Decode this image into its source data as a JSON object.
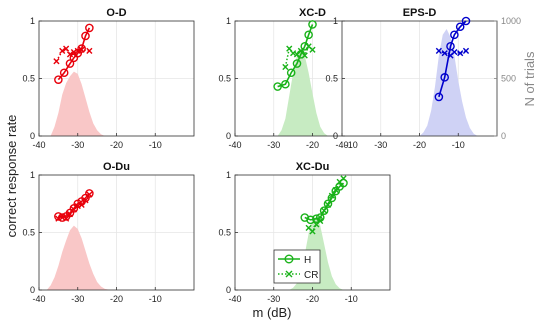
{
  "figure": {
    "ylabel": "correct response rate",
    "xlabel": "m (dB)",
    "right_ylabel": "N of trials"
  },
  "legend": {
    "placement": "bottom-right of XC-Du panel",
    "entries": [
      {
        "label": "H",
        "marker": "circle",
        "line": "solid"
      },
      {
        "label": "CR",
        "marker": "x",
        "line": "dotted"
      }
    ]
  },
  "colors": {
    "red": "#e8000b",
    "green": "#19b219",
    "blue": "#0000cc",
    "red_fill": "#f9c7c7",
    "green_fill": "#c7ebc2",
    "blue_fill": "#cfd2f5",
    "grid": "#e6e6e6",
    "axis": "#333333",
    "right_axis": "#888888"
  },
  "chart_data": [
    {
      "type": "line",
      "title": "O-D",
      "color": "red",
      "xlim": [
        -40,
        0
      ],
      "ylim": [
        0,
        1
      ],
      "xticks": [
        -40,
        -30,
        -20,
        -10
      ],
      "yticks": [
        0,
        0.5,
        1
      ],
      "series": [
        {
          "name": "H",
          "x": [
            -35,
            -33.5,
            -32,
            -31,
            -30,
            -29,
            -28,
            -27
          ],
          "y": [
            0.49,
            0.55,
            0.63,
            0.68,
            0.72,
            0.76,
            0.87,
            0.94
          ]
        },
        {
          "name": "CR",
          "x": [
            -35.5,
            -34,
            -33,
            -32,
            -31,
            -30,
            -29,
            -27
          ],
          "y": [
            0.65,
            0.74,
            0.76,
            0.71,
            0.73,
            0.74,
            0.75,
            0.74
          ]
        }
      ],
      "ntrials": {
        "ylim": [
          0,
          1000
        ],
        "x": [
          -37,
          -36,
          -35,
          -34,
          -33,
          -32,
          -31,
          -30,
          -29,
          -28,
          -27,
          -26,
          -25,
          -24,
          -23
        ],
        "y": [
          0,
          80,
          200,
          360,
          460,
          520,
          560,
          540,
          450,
          330,
          210,
          110,
          50,
          15,
          0
        ]
      }
    },
    {
      "type": "line",
      "title": "XC-D",
      "color": "green",
      "xlim": [
        -40,
        0
      ],
      "ylim": [
        0,
        1
      ],
      "xticks": [
        -40,
        -30,
        -20,
        -10
      ],
      "yticks": [
        0,
        0.5,
        1
      ],
      "series": [
        {
          "name": "H",
          "x": [
            -29,
            -27,
            -25.5,
            -24,
            -23,
            -22,
            -21,
            -20
          ],
          "y": [
            0.43,
            0.45,
            0.55,
            0.63,
            0.71,
            0.78,
            0.88,
            0.97
          ]
        },
        {
          "name": "CR",
          "x": [
            -27,
            -26,
            -25,
            -24,
            -23,
            -22,
            -21,
            -20
          ],
          "y": [
            0.6,
            0.76,
            0.72,
            0.71,
            0.74,
            0.7,
            0.78,
            0.75
          ]
        }
      ],
      "ntrials": {
        "ylim": [
          0,
          1000
        ],
        "x": [
          -29,
          -28,
          -27,
          -26,
          -25,
          -24,
          -23,
          -22,
          -21,
          -20,
          -19,
          -18,
          -17,
          -16
        ],
        "y": [
          0,
          50,
          150,
          350,
          550,
          700,
          760,
          700,
          550,
          370,
          200,
          80,
          25,
          0
        ]
      }
    },
    {
      "type": "line",
      "title": "EPS-D",
      "color": "blue",
      "xlim": [
        -40,
        0
      ],
      "ylim": [
        0,
        1
      ],
      "xticks": [
        -40,
        -30,
        -20,
        -10
      ],
      "yticks": [
        0,
        0.5,
        1
      ],
      "right_yticks": [
        0,
        500,
        1000
      ],
      "series": [
        {
          "name": "H",
          "x": [
            -15,
            -13.5,
            -12,
            -11,
            -9.5,
            -8
          ],
          "y": [
            0.34,
            0.51,
            0.78,
            0.88,
            0.95,
            1.0
          ]
        },
        {
          "name": "CR",
          "x": [
            -15,
            -13.5,
            -12,
            -11,
            -9.5,
            -8
          ],
          "y": [
            0.74,
            0.72,
            0.7,
            0.73,
            0.72,
            0.74
          ]
        }
      ],
      "ntrials": {
        "ylim": [
          0,
          1000
        ],
        "x": [
          -20,
          -19,
          -18,
          -17,
          -16,
          -15,
          -14,
          -13,
          -12,
          -11,
          -10,
          -9,
          -8,
          -7,
          -6,
          -5
        ],
        "y": [
          0,
          30,
          90,
          220,
          430,
          700,
          880,
          930,
          860,
          700,
          480,
          300,
          160,
          70,
          20,
          0
        ]
      }
    },
    {
      "type": "line",
      "title": "O-Du",
      "color": "red",
      "xlim": [
        -40,
        0
      ],
      "ylim": [
        0,
        1
      ],
      "xticks": [
        -40,
        -30,
        -20,
        -10
      ],
      "yticks": [
        0,
        0.5,
        1
      ],
      "series": [
        {
          "name": "H",
          "x": [
            -35,
            -34,
            -33,
            -32,
            -31,
            -30,
            -29,
            -28,
            -27
          ],
          "y": [
            0.64,
            0.63,
            0.64,
            0.67,
            0.71,
            0.75,
            0.77,
            0.8,
            0.84
          ]
        },
        {
          "name": "CR",
          "x": [
            -35,
            -34,
            -33,
            -32,
            -31,
            -30,
            -29,
            -28,
            -27
          ],
          "y": [
            0.62,
            0.63,
            0.62,
            0.66,
            0.7,
            0.73,
            0.74,
            0.78,
            0.83
          ]
        }
      ],
      "ntrials": {
        "ylim": [
          0,
          1000
        ],
        "x": [
          -38,
          -37,
          -36,
          -35,
          -34,
          -33,
          -32,
          -31,
          -30,
          -29,
          -28,
          -27,
          -26,
          -25,
          -24,
          -23,
          -22,
          -21
        ],
        "y": [
          0,
          40,
          110,
          210,
          330,
          430,
          520,
          560,
          530,
          450,
          340,
          230,
          140,
          70,
          30,
          10,
          3,
          0
        ]
      }
    },
    {
      "type": "line",
      "title": "XC-Du",
      "color": "green",
      "xlim": [
        -40,
        0
      ],
      "ylim": [
        0,
        1
      ],
      "xticks": [
        -40,
        -30,
        -20,
        -10
      ],
      "yticks": [
        0,
        0.5,
        1
      ],
      "series": [
        {
          "name": "H",
          "x": [
            -22,
            -20.5,
            -19,
            -18,
            -17,
            -16,
            -15,
            -14,
            -13,
            -12
          ],
          "y": [
            0.63,
            0.61,
            0.62,
            0.63,
            0.69,
            0.75,
            0.8,
            0.86,
            0.9,
            0.93
          ]
        },
        {
          "name": "CR",
          "x": [
            -21,
            -20,
            -19,
            -18,
            -17,
            -16,
            -15,
            -14,
            -13,
            -12
          ],
          "y": [
            0.54,
            0.51,
            0.57,
            0.6,
            0.69,
            0.74,
            0.82,
            0.87,
            0.94,
            0.97
          ]
        }
      ],
      "ntrials": {
        "ylim": [
          0,
          1000
        ],
        "x": [
          -26,
          -25,
          -24,
          -23,
          -22,
          -21,
          -20,
          -19,
          -18,
          -17,
          -16,
          -15,
          -14,
          -13,
          -12
        ],
        "y": [
          0,
          20,
          60,
          150,
          310,
          490,
          620,
          640,
          560,
          400,
          240,
          120,
          50,
          15,
          0
        ]
      }
    }
  ]
}
